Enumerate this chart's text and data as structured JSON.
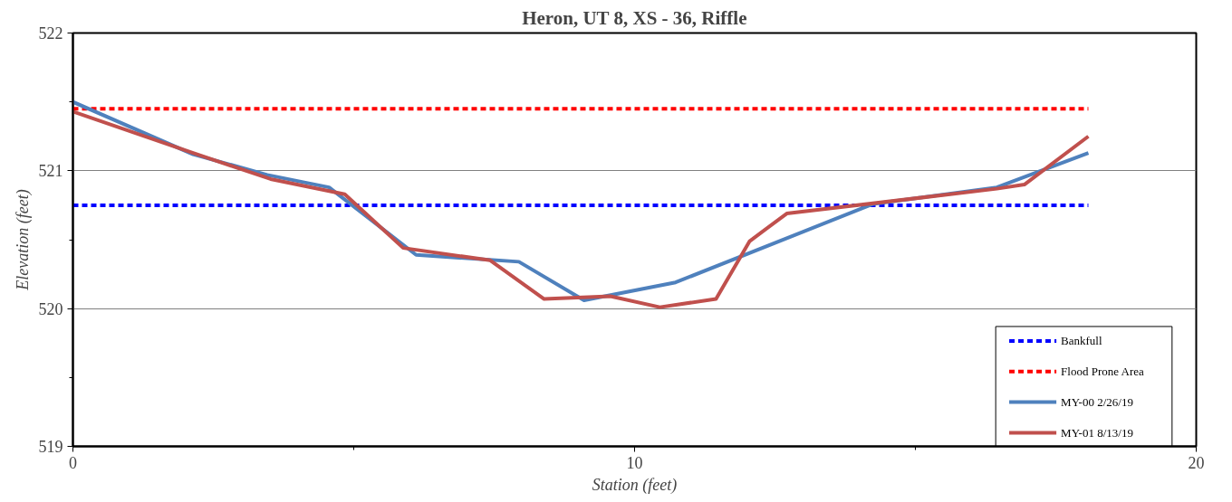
{
  "chart_data": {
    "type": "line",
    "title": "Heron, UT 8, XS - 36, Riffle",
    "xlabel": "Station (feet)",
    "ylabel": "Elevation (feet)",
    "xlim": [
      0,
      20
    ],
    "xticks": [
      0,
      10,
      20
    ],
    "ylim": [
      519,
      522
    ],
    "yticks": [
      519,
      520,
      521,
      522
    ],
    "grid": "y",
    "legend": "bottom right",
    "series": [
      {
        "name": "Bankfull",
        "color": "#0000ff",
        "line_style": "dashed",
        "x": [
          0,
          18.08
        ],
        "values": [
          520.75,
          520.75
        ]
      },
      {
        "name": "Flood Prone Area",
        "color": "#ff0000",
        "line_style": "dashed",
        "x": [
          0,
          18.08
        ],
        "values": [
          521.45,
          521.45
        ]
      },
      {
        "name": "MY-00 2/26/19",
        "color": "#4f81bd",
        "line_style": "solid",
        "x": [
          0,
          2.14,
          3.46,
          4.56,
          6.11,
          7.94,
          9.1,
          10.73,
          14.25,
          16.45,
          18.08
        ],
        "values": [
          521.5,
          521.12,
          520.97,
          520.88,
          520.39,
          520.34,
          520.06,
          520.19,
          520.76,
          520.88,
          521.13
        ]
      },
      {
        "name": "MY-01 8/13/19",
        "color": "#c0504d",
        "line_style": "solid",
        "x": [
          0,
          2.14,
          3.52,
          4.84,
          5.88,
          7.43,
          8.39,
          9.57,
          10.45,
          11.45,
          12.05,
          12.71,
          16.45,
          16.94,
          18.08
        ],
        "values": [
          521.43,
          521.13,
          520.94,
          520.83,
          520.44,
          520.35,
          520.07,
          520.09,
          520.01,
          520.07,
          520.49,
          520.69,
          520.87,
          520.9,
          521.25
        ]
      }
    ]
  }
}
